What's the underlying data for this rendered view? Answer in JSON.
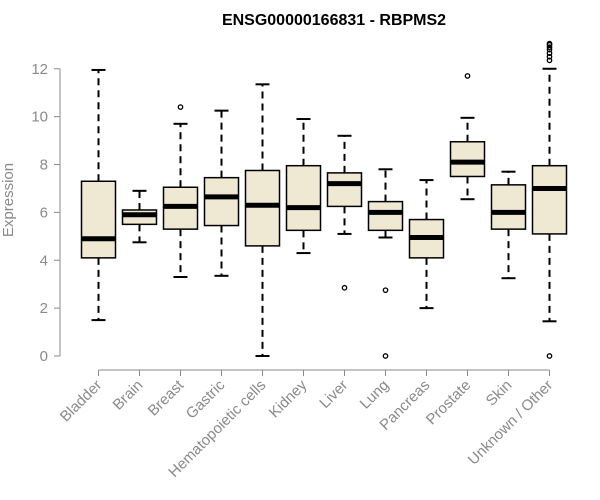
{
  "chart_data": {
    "type": "boxplot",
    "title": "ENSG00000166831 - RBPMS2",
    "xlabel": "",
    "ylabel": "Expression",
    "ylim": [
      0,
      12.7
    ],
    "yticks": [
      0,
      2,
      4,
      6,
      8,
      10,
      12
    ],
    "box_fill": "#efe9d3",
    "box_stroke": "#000000",
    "axis_color": "#8a8a8a",
    "grid": false,
    "categories": [
      "Bladder",
      "Brain",
      "Breast",
      "Gastric",
      "Hematopoietic cells",
      "Kidney",
      "Liver",
      "Lung",
      "Pancreas",
      "Prostate",
      "Skin",
      "Unknown / Other"
    ],
    "boxes": [
      {
        "category": "Bladder",
        "whisker_low": 1.5,
        "q1": 4.1,
        "median": 4.9,
        "q3": 7.3,
        "whisker_high": 11.95,
        "outliers": []
      },
      {
        "category": "Brain",
        "whisker_low": 4.75,
        "q1": 5.5,
        "median": 5.9,
        "q3": 6.1,
        "whisker_high": 6.9,
        "outliers": []
      },
      {
        "category": "Breast",
        "whisker_low": 3.3,
        "q1": 5.3,
        "median": 6.25,
        "q3": 7.05,
        "whisker_high": 9.7,
        "outliers": [
          10.4
        ]
      },
      {
        "category": "Gastric",
        "whisker_low": 3.35,
        "q1": 5.45,
        "median": 6.65,
        "q3": 7.45,
        "whisker_high": 10.25,
        "outliers": []
      },
      {
        "category": "Hematopoietic cells",
        "whisker_low": 0.0,
        "q1": 4.6,
        "median": 6.3,
        "q3": 7.75,
        "whisker_high": 11.35,
        "outliers": []
      },
      {
        "category": "Kidney",
        "whisker_low": 4.3,
        "q1": 5.25,
        "median": 6.2,
        "q3": 7.95,
        "whisker_high": 9.9,
        "outliers": []
      },
      {
        "category": "Liver",
        "whisker_low": 5.1,
        "q1": 6.25,
        "median": 7.2,
        "q3": 7.65,
        "whisker_high": 9.2,
        "outliers": [
          2.85
        ]
      },
      {
        "category": "Lung",
        "whisker_low": 4.95,
        "q1": 5.25,
        "median": 6.0,
        "q3": 6.45,
        "whisker_high": 7.8,
        "outliers": [
          2.75,
          0.0
        ]
      },
      {
        "category": "Pancreas",
        "whisker_low": 2.0,
        "q1": 4.1,
        "median": 4.95,
        "q3": 5.7,
        "whisker_high": 7.35,
        "outliers": []
      },
      {
        "category": "Prostate",
        "whisker_low": 6.55,
        "q1": 7.5,
        "median": 8.1,
        "q3": 8.95,
        "whisker_high": 9.95,
        "outliers": [
          11.7
        ]
      },
      {
        "category": "Skin",
        "whisker_low": 3.25,
        "q1": 5.3,
        "median": 6.0,
        "q3": 7.15,
        "whisker_high": 7.7,
        "outliers": []
      },
      {
        "category": "Unknown / Other",
        "whisker_low": 1.45,
        "q1": 5.1,
        "median": 7.0,
        "q3": 7.95,
        "whisker_high": 12.0,
        "outliers": [
          0.0,
          12.35,
          12.5,
          12.65,
          12.8,
          12.9,
          13.0,
          13.05
        ]
      }
    ]
  }
}
